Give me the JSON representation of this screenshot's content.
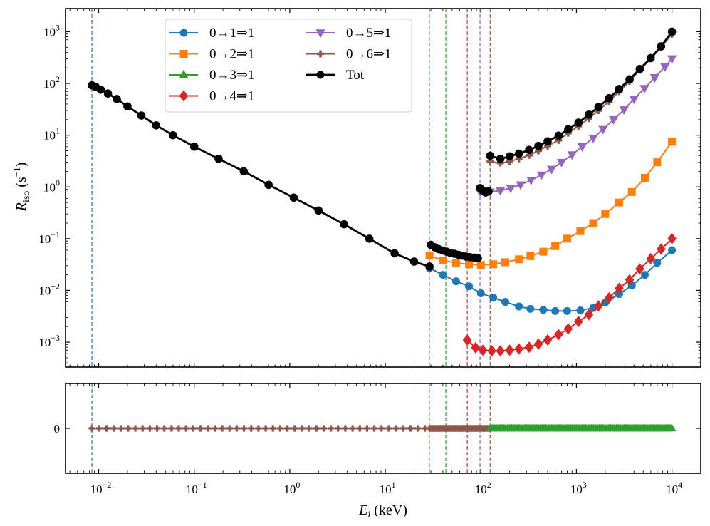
{
  "figure": {
    "xlabel": "E_i (keV)",
    "ylabel": "R_iso (s^-1)",
    "top_panel_yticks": [
      "10^-3",
      "10^-2",
      "10^-1",
      "10^0",
      "10^1",
      "10^2",
      "10^3"
    ],
    "bottom_panel_yticks": [
      "0"
    ],
    "xticks": [
      "10^-2",
      "10^-1",
      "10^0",
      "10^1",
      "10^2",
      "10^3",
      "10^4"
    ]
  },
  "chart_data": [
    {
      "type": "line",
      "panel": "top",
      "x_scale": "log",
      "y_scale": "log",
      "xlim": [
        0.0045,
        20000
      ],
      "ylim": [
        0.00033,
        2800
      ],
      "grid": false,
      "legend_position": "upper center",
      "threshold_lines_keV": [
        {
          "x": 0.0085,
          "color": "#1f77b4"
        },
        {
          "x": 29,
          "color": "#ff7f0e"
        },
        {
          "x": 43,
          "color": "#2ca02c"
        },
        {
          "x": 72,
          "color": "#d62728"
        },
        {
          "x": 98,
          "color": "#9467bd"
        },
        {
          "x": 125,
          "color": "#8c564b"
        }
      ],
      "series": [
        {
          "name": "0→1⇒1",
          "color": "#1f77b4",
          "marker": "circle",
          "x": [
            29,
            40,
            55,
            75,
            100,
            135,
            180,
            250,
            330,
            450,
            600,
            800,
            1100,
            1500,
            2000,
            2800,
            3800,
            5200,
            7000,
            10000
          ],
          "y": [
            0.027,
            0.02,
            0.015,
            0.012,
            0.0088,
            0.0072,
            0.006,
            0.0049,
            0.0044,
            0.0042,
            0.004,
            0.004,
            0.0041,
            0.0046,
            0.0058,
            0.0085,
            0.0125,
            0.02,
            0.034,
            0.06
          ]
        },
        {
          "name": "0→2⇒1",
          "color": "#ff7f0e",
          "marker": "square",
          "x": [
            29,
            40,
            55,
            75,
            100,
            135,
            180,
            250,
            330,
            450,
            600,
            800,
            1100,
            1500,
            2000,
            2800,
            3800,
            5200,
            7000,
            10000
          ],
          "y": [
            0.047,
            0.038,
            0.034,
            0.032,
            0.031,
            0.032,
            0.035,
            0.04,
            0.046,
            0.056,
            0.072,
            0.1,
            0.14,
            0.2,
            0.3,
            0.5,
            0.8,
            1.5,
            3.0,
            7.5
          ]
        },
        {
          "name": "0→3⇒1",
          "color": "#2ca02c",
          "marker": "triangle-up",
          "x": [],
          "y": []
        },
        {
          "name": "0→4⇒1",
          "color": "#d62728",
          "marker": "diamond",
          "x": [
            72,
            88,
            105,
            130,
            160,
            200,
            250,
            320,
            400,
            500,
            650,
            820,
            1050,
            1350,
            1700,
            2200,
            2800,
            3600,
            4600,
            6000,
            7700,
            10000
          ],
          "y": [
            0.0011,
            0.00078,
            0.0007,
            0.00068,
            0.00068,
            0.0007,
            0.00074,
            0.0008,
            0.00092,
            0.0011,
            0.0014,
            0.0018,
            0.0025,
            0.0034,
            0.005,
            0.0072,
            0.011,
            0.016,
            0.026,
            0.041,
            0.063,
            0.1
          ]
        },
        {
          "name": "0→5⇒1",
          "color": "#9467bd",
          "marker": "triangle-down",
          "x": [
            98,
            125,
            160,
            205,
            260,
            335,
            430,
            550,
            700,
            900,
            1150,
            1500,
            1900,
            2450,
            3150,
            4000,
            5150,
            6600,
            8450,
            10000
          ],
          "y": [
            0.8,
            0.8,
            0.85,
            0.95,
            1.1,
            1.35,
            1.7,
            2.2,
            3.0,
            4.2,
            6.0,
            8.8,
            13,
            20,
            31,
            50,
            80,
            130,
            210,
            300
          ]
        },
        {
          "name": "0→6⇒1",
          "color": "#8c564b",
          "marker": "plus",
          "x": [
            125,
            160,
            200,
            250,
            320,
            400,
            500,
            650,
            820,
            1050,
            1350,
            1700,
            2200,
            2800,
            3600,
            4600,
            6000,
            7700,
            10000
          ],
          "y": [
            3.1,
            2.9,
            3.1,
            3.5,
            4.1,
            5.0,
            6.2,
            8.0,
            11,
            15,
            21,
            30,
            45,
            70,
            110,
            180,
            300,
            500,
            900
          ]
        },
        {
          "name": "Tot",
          "color": "#000000",
          "marker": "circle",
          "x": [
            0.0085,
            0.0093,
            0.0105,
            0.0125,
            0.0155,
            0.02,
            0.028,
            0.04,
            0.06,
            0.1,
            0.18,
            0.33,
            0.6,
            1.1,
            2.0,
            3.7,
            6.8,
            12.5,
            20,
            29,
            30,
            33,
            36,
            40,
            44,
            48,
            53,
            58,
            64,
            70,
            77,
            85,
            93,
            98,
            105,
            112,
            120,
            125,
            160,
            200,
            250,
            320,
            400,
            500,
            650,
            820,
            1050,
            1350,
            1700,
            2200,
            2800,
            3600,
            4600,
            6000,
            7700,
            10000
          ],
          "y": [
            92,
            86,
            76,
            64,
            50,
            36,
            24,
            15.5,
            10,
            6.0,
            3.5,
            2.0,
            1.1,
            0.62,
            0.35,
            0.19,
            0.1,
            0.052,
            0.036,
            0.029,
            0.076,
            0.068,
            0.063,
            0.059,
            0.056,
            0.053,
            0.051,
            0.049,
            0.047,
            0.045,
            0.044,
            0.043,
            0.042,
            0.95,
            0.85,
            0.78,
            0.82,
            4.0,
            3.5,
            3.9,
            4.4,
            5.2,
            6.2,
            7.6,
            9.8,
            13,
            17.5,
            25,
            35,
            52,
            78,
            120,
            190,
            310,
            520,
            1000
          ]
        }
      ]
    },
    {
      "type": "line",
      "panel": "bottom",
      "x_scale": "log",
      "y_scale": "linear",
      "ylim": [
        -1,
        1
      ],
      "grid": false,
      "series_segments": [
        {
          "color": "#8c564b",
          "marker": "plus",
          "x_start": 0.0085,
          "x_end": 125,
          "y": 0
        },
        {
          "color": "#2ca02c",
          "marker": "triangle-up",
          "x_start": 125,
          "x_end": 10000,
          "y": 0
        }
      ]
    }
  ]
}
